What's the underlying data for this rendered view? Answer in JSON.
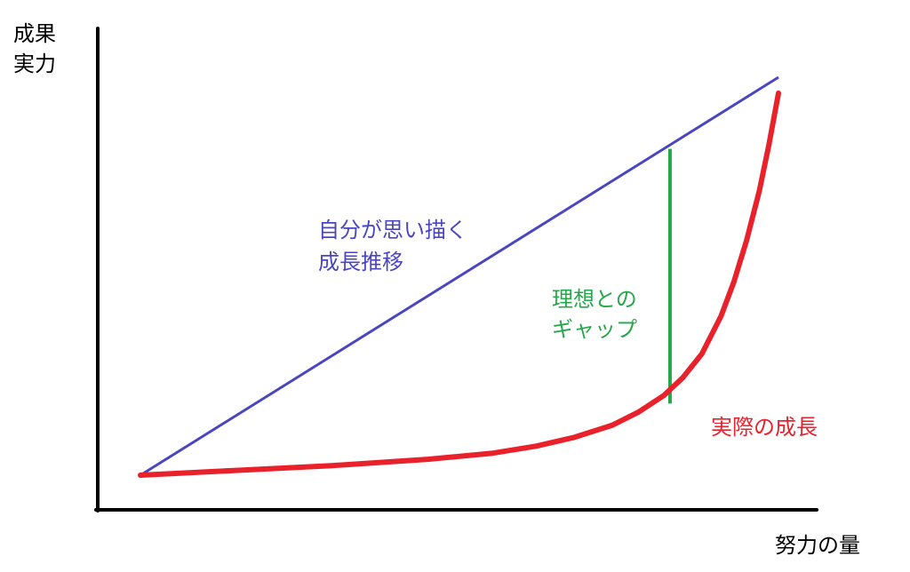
{
  "chart_data": {
    "type": "line",
    "title": "",
    "ylabel_lines": [
      "成果",
      "実力"
    ],
    "xlabel": "努力の量",
    "grid": false,
    "legend": "none",
    "xlim": [
      0,
      100
    ],
    "ylim": [
      0,
      100
    ],
    "series": [
      {
        "key": "ideal",
        "label_lines": [
          "自分が思い描く",
          "成長推移"
        ],
        "color": "#4a46c0",
        "x": [
          0,
          100
        ],
        "y": [
          0,
          100
        ]
      },
      {
        "key": "actual",
        "label_lines": [
          "実際の成長"
        ],
        "color": "#e8212b",
        "x": [
          0,
          15,
          30,
          45,
          55,
          62,
          68,
          74,
          78,
          82,
          85,
          88,
          91,
          93,
          95,
          97,
          98.5,
          100
        ],
        "y": [
          0,
          1.2,
          2.4,
          4,
          5.5,
          7.3,
          9.5,
          12.6,
          15.8,
          20,
          24.5,
          30.5,
          40,
          48.5,
          59,
          71.5,
          83,
          96
        ]
      }
    ],
    "annotations": [
      {
        "key": "gap",
        "label_lines": [
          "理想との",
          "ギャップ"
        ],
        "color": "#24a84a",
        "x": 83,
        "y_from": 18,
        "y_to": 82
      }
    ]
  }
}
